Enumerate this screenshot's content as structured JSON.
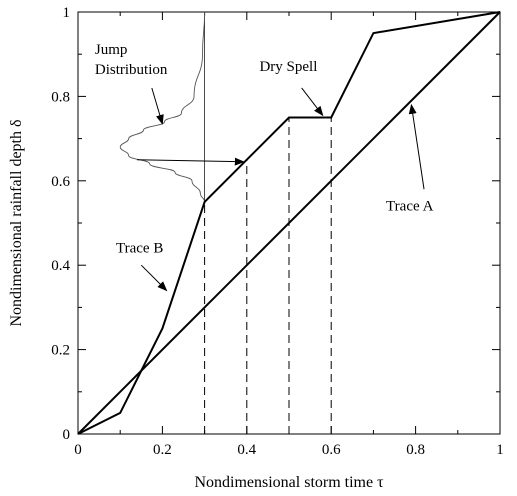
{
  "chart_data": {
    "type": "line",
    "xlabel": "Nondimensional storm time τ",
    "ylabel": "Nondimensional rainfall depth δ",
    "xlim": [
      0,
      1
    ],
    "ylim": [
      0,
      1
    ],
    "x_ticks": [
      0,
      0.2,
      0.4,
      0.6,
      0.8,
      1
    ],
    "y_ticks": [
      0,
      0.2,
      0.4,
      0.6,
      0.8,
      1
    ],
    "x_tick_labels": [
      "0",
      "0.2",
      "0.4",
      "0.6",
      "0.8",
      "1"
    ],
    "y_tick_labels": [
      "0",
      "0.2",
      "0.4",
      "0.6",
      "0.8",
      "1"
    ],
    "grid": false,
    "series": [
      {
        "name": "Trace A",
        "x": [
          0,
          1
        ],
        "y": [
          0,
          1
        ]
      },
      {
        "name": "Trace B",
        "x": [
          0,
          0.1,
          0.2,
          0.3,
          0.4,
          0.5,
          0.6,
          0.7,
          1.0
        ],
        "y": [
          0,
          0.05,
          0.25,
          0.55,
          0.65,
          0.75,
          0.75,
          0.95,
          1.0
        ]
      }
    ],
    "jump_distribution": {
      "baseline_x": 0.3,
      "y": [
        1.0,
        0.9,
        0.8,
        0.76,
        0.74,
        0.72,
        0.7,
        0.68,
        0.66,
        0.64,
        0.62,
        0.6,
        0.57,
        0.55
      ],
      "x": [
        0.3,
        0.295,
        0.275,
        0.245,
        0.205,
        0.155,
        0.12,
        0.1,
        0.12,
        0.17,
        0.23,
        0.27,
        0.29,
        0.3
      ]
    },
    "dashed_verticals_x": [
      0.3,
      0.4,
      0.5,
      0.6
    ],
    "jump_arrow": {
      "from": [
        0.14,
        0.65
      ],
      "to": [
        0.4,
        0.645
      ]
    },
    "annotations": [
      {
        "id": "jump",
        "lines": [
          "Jump",
          "Distribution"
        ],
        "text_at": [
          0.04,
          0.9
        ],
        "arrow_from": [
          0.175,
          0.82
        ],
        "arrow_to": [
          0.2,
          0.735
        ]
      },
      {
        "id": "dry",
        "lines": [
          "Dry Spell"
        ],
        "text_at": [
          0.43,
          0.86
        ],
        "arrow_from": [
          0.53,
          0.82
        ],
        "arrow_to": [
          0.58,
          0.755
        ]
      },
      {
        "id": "traceA",
        "lines": [
          "Trace A"
        ],
        "text_at": [
          0.73,
          0.53
        ],
        "arrow_from": [
          0.82,
          0.58
        ],
        "arrow_to": [
          0.79,
          0.78
        ]
      },
      {
        "id": "traceB",
        "lines": [
          "Trace B"
        ],
        "text_at": [
          0.09,
          0.43
        ],
        "arrow_from": [
          0.15,
          0.4
        ],
        "arrow_to": [
          0.21,
          0.34
        ]
      }
    ]
  }
}
